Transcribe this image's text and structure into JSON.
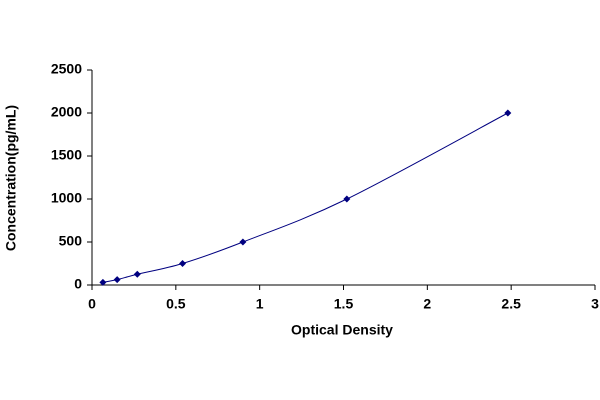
{
  "chart_data": {
    "type": "scatter",
    "x_label": "Optical Density",
    "y_label": "Concentration(pg/mL)",
    "x": [
      0.065,
      0.15,
      0.27,
      0.54,
      0.9,
      1.52,
      2.48
    ],
    "values": [
      31.25,
      62.5,
      125,
      250,
      500,
      1000,
      2000
    ],
    "color": "#000080",
    "xlim": [
      0,
      3
    ],
    "xticks": [
      0,
      0.5,
      1,
      1.5,
      2,
      2.5,
      3
    ],
    "ylim": [
      0,
      2500
    ],
    "yticks": [
      0,
      500,
      1000,
      1500,
      2000,
      2500
    ]
  }
}
